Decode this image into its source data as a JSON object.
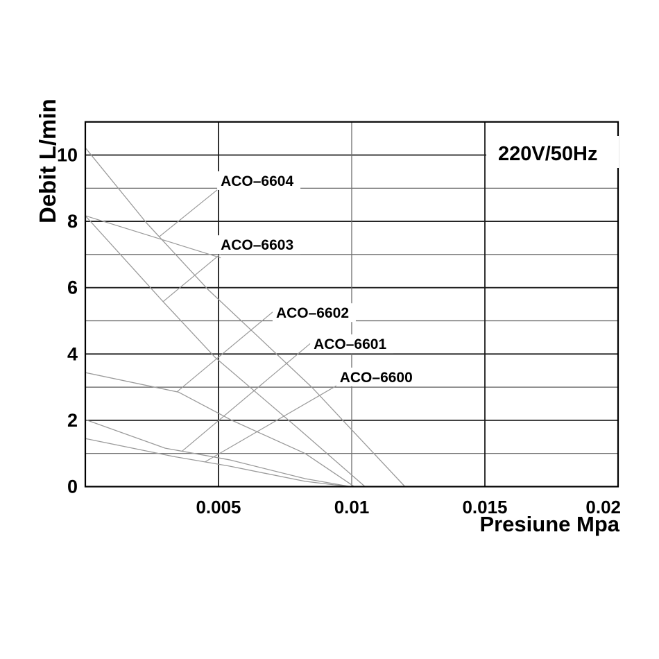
{
  "figure": {
    "background": "#ffffff",
    "badge_label": "220V/50Hz"
  },
  "chart_data": {
    "type": "line",
    "title": "",
    "xlabel": "Presiune Mpa",
    "ylabel": "Debit L/min",
    "xlim": [
      0,
      0.02
    ],
    "ylim": [
      0,
      11
    ],
    "grid": {
      "h_major": [
        2,
        4,
        6,
        8,
        10
      ],
      "h_minor": [
        1,
        3,
        5,
        7,
        9
      ],
      "v_lines": [
        {
          "value": 0.005,
          "strong": true
        },
        {
          "value": 0.01,
          "strong": false
        },
        {
          "value": 0.015,
          "strong": true
        }
      ]
    },
    "x_ticks": [
      {
        "label": "0.005",
        "value": 0.005
      },
      {
        "label": "0.01",
        "value": 0.01
      },
      {
        "label": "0.015",
        "value": 0.015
      },
      {
        "label": "0.02",
        "value": 0.02,
        "align": "end"
      }
    ],
    "y_ticks": [
      {
        "label": "0",
        "value": 0
      },
      {
        "label": "2",
        "value": 2
      },
      {
        "label": "4",
        "value": 4
      },
      {
        "label": "6",
        "value": 6
      },
      {
        "label": "8",
        "value": 8
      },
      {
        "label": "10",
        "value": 10
      }
    ],
    "series": [
      {
        "name": "ACO–6604",
        "points": [
          [
            0,
            10.22
          ],
          [
            0.0023,
            7.95
          ],
          [
            0.0046,
            5.95
          ],
          [
            0.0085,
            3.0
          ],
          [
            0.012,
            0
          ]
        ],
        "label_anchor": [
          0.00508,
          9.07
        ],
        "leaders": [
          [
            [
              0.00278,
              7.54
            ],
            [
              0.00503,
              9.0
            ]
          ]
        ]
      },
      {
        "name": "ACO–6603",
        "points": [
          [
            0,
            8.17
          ],
          [
            0.00292,
            5.58
          ],
          [
            0.00487,
            3.9
          ],
          [
            0.008,
            1.75
          ],
          [
            0.0105,
            0
          ]
        ],
        "label_anchor": [
          0.00508,
          7.14
        ],
        "leaders": [
          [
            [
              0.00292,
              5.58
            ],
            [
              0.00508,
              7.02
            ]
          ],
          [
            [
              0,
              8.17
            ],
            [
              0.00508,
              6.9
            ]
          ]
        ]
      },
      {
        "name": "ACO–6602",
        "points": [
          [
            0,
            3.44
          ],
          [
            0.0035,
            2.85
          ],
          [
            0.0055,
            2.0
          ],
          [
            0.00825,
            1.0
          ],
          [
            0.0101,
            0
          ]
        ],
        "label_anchor": [
          0.00716,
          5.09
        ],
        "leaders": [
          [
            [
              0.00344,
              2.86
            ],
            [
              0.00716,
              5.35
            ]
          ]
        ]
      },
      {
        "name": "ACO–6601",
        "points": [
          [
            0,
            2.02
          ],
          [
            0.003,
            1.16
          ],
          [
            0.0054,
            0.81
          ],
          [
            0.00825,
            0.24
          ],
          [
            0.00995,
            0
          ]
        ],
        "label_anchor": [
          0.00857,
          4.15
        ],
        "leaders": [
          [
            [
              0.00362,
              1.06
            ],
            [
              0.00857,
              4.4
            ]
          ]
        ]
      },
      {
        "name": "ACO–6600",
        "points": [
          [
            0,
            1.45
          ],
          [
            0.0033,
            0.91
          ],
          [
            0.0054,
            0.62
          ],
          [
            0.00825,
            0.16
          ],
          [
            0.0099,
            0
          ]
        ],
        "label_anchor": [
          0.00955,
          3.15
        ],
        "leaders": [
          [
            [
              0.00448,
              0.74
            ],
            [
              0.00955,
              3.1
            ]
          ]
        ]
      }
    ],
    "colors": {
      "curve": "#9a9a9a",
      "leader": "#9a9a9a",
      "grid_strong": "#1b1b1b",
      "grid_weak": "#5a5a5a",
      "grid_mid": "#6e6e6e",
      "frame": "#000000",
      "text": "#000000",
      "label_bg": "#ffffff"
    }
  }
}
